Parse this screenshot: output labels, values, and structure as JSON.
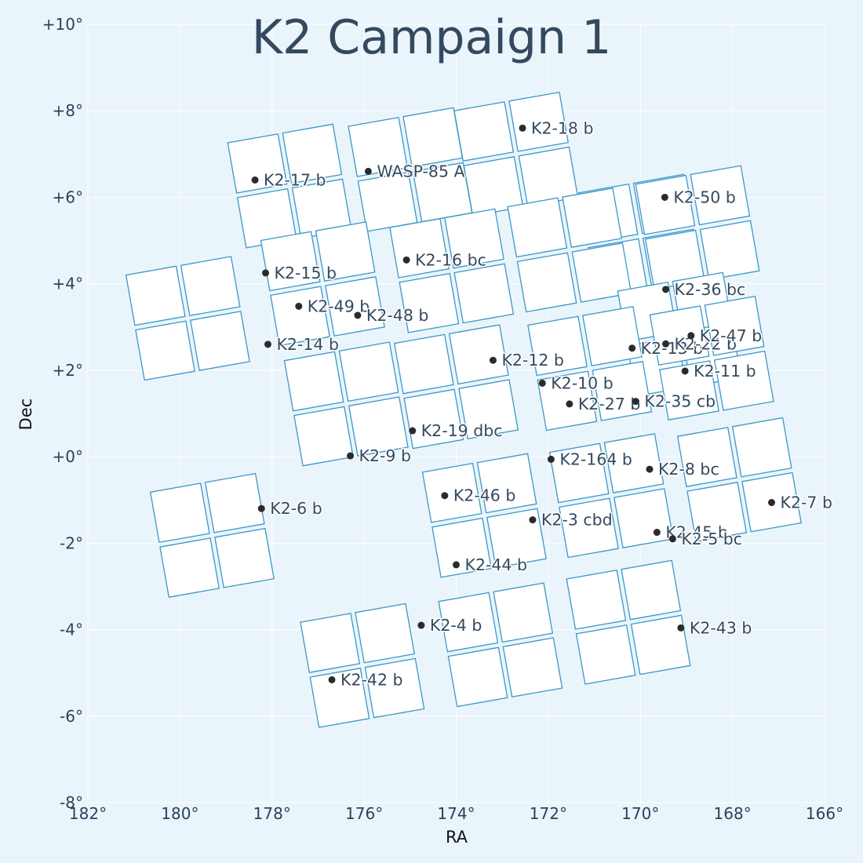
{
  "chart_data": {
    "type": "scatter",
    "title": "K2 Campaign 1",
    "xlabel": "RA",
    "ylabel": "Dec",
    "xlim": [
      182,
      166
    ],
    "ylim": [
      -8,
      10
    ],
    "x_ticks": [
      {
        "value": 182,
        "label": "182°"
      },
      {
        "value": 180,
        "label": "180°"
      },
      {
        "value": 178,
        "label": "178°"
      },
      {
        "value": 176,
        "label": "176°"
      },
      {
        "value": 174,
        "label": "174°"
      },
      {
        "value": 172,
        "label": "172°"
      },
      {
        "value": 170,
        "label": "170°"
      },
      {
        "value": 168,
        "label": "168°"
      },
      {
        "value": 166,
        "label": "166°"
      }
    ],
    "y_ticks": [
      {
        "value": 10,
        "label": "+10°"
      },
      {
        "value": 8,
        "label": "+8°"
      },
      {
        "value": 6,
        "label": "+6°"
      },
      {
        "value": 4,
        "label": "+4°"
      },
      {
        "value": 2,
        "label": "+2°"
      },
      {
        "value": 0,
        "label": "+0°"
      },
      {
        "value": -2,
        "label": "-2°"
      },
      {
        "value": -4,
        "label": "-4°"
      },
      {
        "value": -6,
        "label": "-6°"
      },
      {
        "value": -8,
        "label": "-8°"
      }
    ],
    "grid": true,
    "colors": {
      "background": "#eaf4fb",
      "grid": "#ffffff",
      "chip_outline": "#3a98c8",
      "chip_fill": "#ffffff",
      "dot": "#2b2b2b",
      "text": "#34495e"
    },
    "modules": [
      [
        177.62,
        6.26
      ],
      [
        175.0,
        6.64
      ],
      [
        172.7,
        7.0
      ],
      [
        170.0,
        5.1
      ],
      [
        168.76,
        5.3
      ],
      [
        176.9,
        4.0
      ],
      [
        174.1,
        4.3
      ],
      [
        171.54,
        4.78
      ],
      [
        179.83,
        3.2
      ],
      [
        169.15,
        2.83
      ],
      [
        176.39,
        1.22
      ],
      [
        174.0,
        1.62
      ],
      [
        171.1,
        2.04
      ],
      [
        168.45,
        2.28
      ],
      [
        179.3,
        -1.82
      ],
      [
        173.39,
        -1.36
      ],
      [
        170.63,
        -0.9
      ],
      [
        167.85,
        -0.53
      ],
      [
        176.04,
        -4.83
      ],
      [
        173.04,
        -4.35
      ],
      [
        170.26,
        -3.83
      ]
    ],
    "planets": [
      {
        "name": "K2-17 b",
        "ra": 178.37,
        "dec": 6.4
      },
      {
        "name": "WASP-85 A",
        "ra": 175.91,
        "dec": 6.6
      },
      {
        "name": "K2-18 b",
        "ra": 172.56,
        "dec": 7.6
      },
      {
        "name": "K2-50 b",
        "ra": 169.47,
        "dec": 6.0
      },
      {
        "name": "K2-15 b",
        "ra": 178.14,
        "dec": 4.25
      },
      {
        "name": "K2-16 bc",
        "ra": 175.08,
        "dec": 4.55
      },
      {
        "name": "K2-49 b",
        "ra": 177.42,
        "dec": 3.48
      },
      {
        "name": "K2-48 b",
        "ra": 176.14,
        "dec": 3.27
      },
      {
        "name": "K2-36 bc",
        "ra": 169.45,
        "dec": 3.87
      },
      {
        "name": "K2-14 b",
        "ra": 178.09,
        "dec": 2.6
      },
      {
        "name": "K2-12 b",
        "ra": 173.2,
        "dec": 2.23
      },
      {
        "name": "K2-13 b",
        "ra": 170.18,
        "dec": 2.51
      },
      {
        "name": "K2-22 b",
        "ra": 169.45,
        "dec": 2.61
      },
      {
        "name": "K2-47 b",
        "ra": 168.9,
        "dec": 2.8
      },
      {
        "name": "K2-11 b",
        "ra": 169.03,
        "dec": 1.98
      },
      {
        "name": "K2-10 b",
        "ra": 172.13,
        "dec": 1.7
      },
      {
        "name": "K2-27 b",
        "ra": 171.54,
        "dec": 1.22
      },
      {
        "name": "K2-35 cb",
        "ra": 170.1,
        "dec": 1.28
      },
      {
        "name": "K2-19 dbc",
        "ra": 174.95,
        "dec": 0.6
      },
      {
        "name": "K2-9 b",
        "ra": 176.3,
        "dec": 0.02
      },
      {
        "name": "K2-164 b",
        "ra": 171.94,
        "dec": -0.06
      },
      {
        "name": "K2-8 bc",
        "ra": 169.8,
        "dec": -0.29
      },
      {
        "name": "K2-7 b",
        "ra": 167.15,
        "dec": -1.06
      },
      {
        "name": "K2-6 b",
        "ra": 178.23,
        "dec": -1.2
      },
      {
        "name": "K2-46 b",
        "ra": 174.25,
        "dec": -0.9
      },
      {
        "name": "K2-3 cbd",
        "ra": 172.34,
        "dec": -1.46
      },
      {
        "name": "K2-45 b",
        "ra": 169.64,
        "dec": -1.75
      },
      {
        "name": "K2-5 bc",
        "ra": 169.3,
        "dec": -1.9
      },
      {
        "name": "K2-44 b",
        "ra": 174.0,
        "dec": -2.5
      },
      {
        "name": "K2-4 b",
        "ra": 174.76,
        "dec": -3.9
      },
      {
        "name": "K2-43 b",
        "ra": 169.12,
        "dec": -3.96
      },
      {
        "name": "K2-42 b",
        "ra": 176.7,
        "dec": -5.16
      }
    ]
  }
}
